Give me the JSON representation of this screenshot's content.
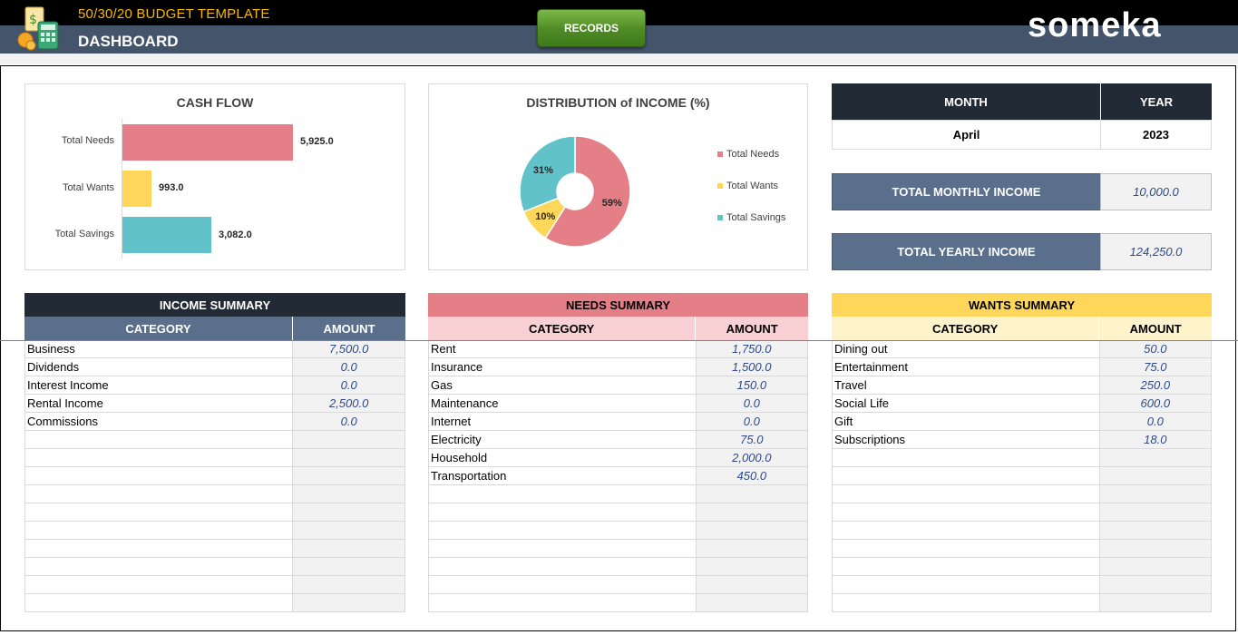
{
  "header": {
    "app_title": "50/30/20 BUDGET TEMPLATE",
    "page_title": "DASHBOARD",
    "records_button": "RECORDS",
    "brand": "someka"
  },
  "colors": {
    "needs": "#e47f87",
    "wants": "#fdd65a",
    "savings": "#62c2c9",
    "header_dark": "#000000",
    "header_blue": "#44546a"
  },
  "cash_flow": {
    "title": "CASH FLOW",
    "items": [
      {
        "label": "Total Needs",
        "value": 5925.0,
        "display": "5,925.0"
      },
      {
        "label": "Total Wants",
        "value": 993.0,
        "display": "993.0"
      },
      {
        "label": "Total Savings",
        "value": 3082.0,
        "display": "3,082.0"
      }
    ]
  },
  "chart_data": [
    {
      "type": "bar",
      "title": "CASH FLOW",
      "categories": [
        "Total Needs",
        "Total Wants",
        "Total Savings"
      ],
      "values": [
        5925.0,
        993.0,
        3082.0
      ],
      "orientation": "horizontal"
    },
    {
      "type": "pie",
      "title": "DISTRIBUTION of INCOME (%)",
      "categories": [
        "Total Needs",
        "Total Wants",
        "Total Savings"
      ],
      "values": [
        59,
        10,
        31
      ],
      "labels": [
        "59%",
        "10%",
        "31%"
      ],
      "legend": "right"
    }
  ],
  "distribution": {
    "title": "DISTRIBUTION of INCOME (%)",
    "legend": [
      "Total Needs",
      "Total Wants",
      "Total Savings"
    ],
    "labels": [
      "59%",
      "10%",
      "31%"
    ]
  },
  "period": {
    "month_label": "MONTH",
    "year_label": "YEAR",
    "month": "April",
    "year": "2023"
  },
  "income_totals": {
    "monthly_label": "TOTAL MONTHLY INCOME",
    "monthly_value": "10,000.0",
    "yearly_label": "TOTAL YEARLY INCOME",
    "yearly_value": "124,250.0"
  },
  "income_summary": {
    "title": "INCOME SUMMARY",
    "col1": "CATEGORY",
    "col2": "AMOUNT",
    "rows": [
      {
        "category": "Business",
        "amount": "7,500.0"
      },
      {
        "category": "Dividends",
        "amount": "0.0"
      },
      {
        "category": "Interest Income",
        "amount": "0.0"
      },
      {
        "category": "Rental Income",
        "amount": "2,500.0"
      },
      {
        "category": "Commissions",
        "amount": "0.0"
      },
      {
        "category": "",
        "amount": ""
      },
      {
        "category": "",
        "amount": ""
      },
      {
        "category": "",
        "amount": ""
      },
      {
        "category": "",
        "amount": ""
      },
      {
        "category": "",
        "amount": ""
      },
      {
        "category": "",
        "amount": ""
      },
      {
        "category": "",
        "amount": ""
      },
      {
        "category": "",
        "amount": ""
      },
      {
        "category": "",
        "amount": ""
      },
      {
        "category": "",
        "amount": ""
      }
    ]
  },
  "needs_summary": {
    "title": "NEEDS SUMMARY",
    "col1": "CATEGORY",
    "col2": "AMOUNT",
    "rows": [
      {
        "category": "Rent",
        "amount": "1,750.0"
      },
      {
        "category": "Insurance",
        "amount": "1,500.0"
      },
      {
        "category": "Gas",
        "amount": "150.0"
      },
      {
        "category": "Maintenance",
        "amount": "0.0"
      },
      {
        "category": "Internet",
        "amount": "0.0"
      },
      {
        "category": "Electricity",
        "amount": "75.0"
      },
      {
        "category": "Household",
        "amount": "2,000.0"
      },
      {
        "category": "Transportation",
        "amount": "450.0"
      },
      {
        "category": "",
        "amount": ""
      },
      {
        "category": "",
        "amount": ""
      },
      {
        "category": "",
        "amount": ""
      },
      {
        "category": "",
        "amount": ""
      },
      {
        "category": "",
        "amount": ""
      },
      {
        "category": "",
        "amount": ""
      },
      {
        "category": "",
        "amount": ""
      }
    ]
  },
  "wants_summary": {
    "title": "WANTS SUMMARY",
    "col1": "CATEGORY",
    "col2": "AMOUNT",
    "rows": [
      {
        "category": "Dining out",
        "amount": "50.0"
      },
      {
        "category": "Entertainment",
        "amount": "75.0"
      },
      {
        "category": "Travel",
        "amount": "250.0"
      },
      {
        "category": "Social Life",
        "amount": "600.0"
      },
      {
        "category": "Gift",
        "amount": "0.0"
      },
      {
        "category": "Subscriptions",
        "amount": "18.0"
      },
      {
        "category": "",
        "amount": ""
      },
      {
        "category": "",
        "amount": ""
      },
      {
        "category": "",
        "amount": ""
      },
      {
        "category": "",
        "amount": ""
      },
      {
        "category": "",
        "amount": ""
      },
      {
        "category": "",
        "amount": ""
      },
      {
        "category": "",
        "amount": ""
      },
      {
        "category": "",
        "amount": ""
      },
      {
        "category": "",
        "amount": ""
      }
    ]
  }
}
